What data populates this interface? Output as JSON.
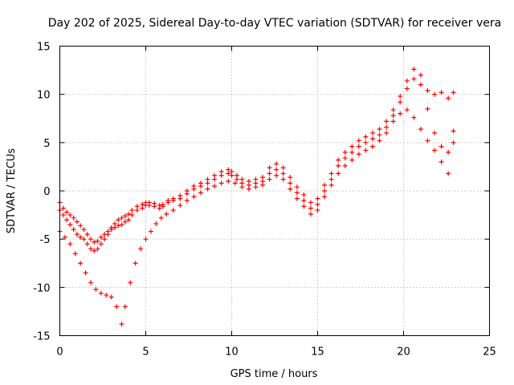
{
  "chart_data": {
    "type": "scatter",
    "title": "Day 202 of 2025, Sidereal Day-to-day VTEC variation (SDTVAR) for receiver vera",
    "xlabel": "GPS time / hours",
    "ylabel": "SDTVAR / TECUs",
    "xlim": [
      0,
      25
    ],
    "ylim": [
      -15,
      15
    ],
    "x_ticks": [
      0,
      5,
      10,
      15,
      20,
      25
    ],
    "y_ticks": [
      -15,
      -10,
      -5,
      0,
      5,
      10,
      15
    ],
    "x_tick_labels": [
      "0",
      "5",
      "10",
      "15",
      "20",
      "25"
    ],
    "y_tick_labels": [
      "-15",
      "-10",
      "-5",
      "0",
      "5",
      "10",
      "15"
    ],
    "grid": true,
    "marker": "plus",
    "color": "#ff0000",
    "series": [
      {
        "x": [
          0.0,
          0.2,
          0.4,
          0.6,
          0.8,
          1.0,
          1.2,
          1.4,
          1.6,
          1.8,
          2.0,
          2.2,
          2.4,
          2.6,
          2.8,
          3.0,
          3.2,
          3.4,
          3.6,
          3.8,
          4.0,
          4.2,
          4.5,
          4.8,
          5.0,
          5.2,
          5.5,
          5.8,
          6.0,
          6.3,
          6.6,
          7.0,
          7.4,
          7.8,
          8.2,
          8.6,
          9.0,
          9.4,
          9.8,
          10.0,
          10.3,
          10.6,
          11.0,
          11.4,
          11.8,
          12.2,
          12.6,
          13.0,
          13.4,
          13.8,
          14.2,
          14.6,
          15.0,
          15.4,
          15.8,
          16.2,
          16.6,
          17.0,
          17.4,
          17.8,
          18.2,
          18.6,
          19.0,
          19.4,
          19.8,
          20.2,
          20.6,
          21.0,
          21.4,
          21.8,
          22.2,
          22.6,
          22.9
        ],
        "y": [
          -2.0,
          -2.5,
          -3.0,
          -3.5,
          -4.0,
          -4.5,
          -4.8,
          -5.0,
          -5.5,
          -6.0,
          -6.2,
          -6.0,
          -5.5,
          -5.0,
          -4.5,
          -4.0,
          -3.8,
          -3.6,
          -3.5,
          -3.2,
          -3.0,
          -2.5,
          -2.0,
          -1.8,
          -1.5,
          -1.5,
          -1.6,
          -1.8,
          -1.6,
          -1.2,
          -1.0,
          -0.8,
          -0.3,
          0.2,
          0.5,
          0.8,
          1.2,
          1.6,
          1.8,
          1.6,
          1.2,
          0.8,
          0.6,
          0.8,
          1.0,
          1.8,
          2.2,
          1.8,
          0.8,
          -0.2,
          -1.0,
          -1.8,
          -1.4,
          0.0,
          1.2,
          2.6,
          3.4,
          4.0,
          4.6,
          5.0,
          5.4,
          5.8,
          6.6,
          7.8,
          9.2,
          10.6,
          11.6,
          11.0,
          8.5,
          6.0,
          4.6,
          4.0,
          5.0
        ]
      },
      {
        "x": [
          0.0,
          0.2,
          0.4,
          0.6,
          0.8,
          1.0,
          1.2,
          1.4,
          1.6,
          1.8,
          2.0,
          2.2,
          2.4,
          2.6,
          2.8,
          3.0,
          3.2,
          3.4,
          3.6,
          3.8,
          4.0,
          4.2,
          4.5,
          4.8,
          5.0,
          5.2,
          5.5,
          5.8,
          6.0,
          6.3,
          6.6,
          7.0,
          7.4,
          7.8,
          8.2,
          8.6,
          9.0,
          9.4,
          9.8,
          10.0,
          10.3,
          10.6,
          11.0,
          11.4,
          11.8,
          12.2,
          12.6,
          13.0,
          13.4,
          13.8,
          14.2,
          14.6,
          15.0,
          15.4,
          15.8,
          16.2,
          16.6,
          17.0,
          17.4,
          17.8,
          18.2,
          18.6,
          19.0,
          19.4,
          19.8,
          20.2,
          20.6,
          21.0,
          21.4,
          21.8,
          22.2,
          22.6,
          22.9
        ],
        "y": [
          -1.2,
          -1.8,
          -2.2,
          -2.5,
          -2.8,
          -3.2,
          -3.6,
          -4.0,
          -4.5,
          -5.0,
          -5.3,
          -5.2,
          -4.8,
          -4.5,
          -4.2,
          -3.8,
          -3.4,
          -3.0,
          -2.8,
          -2.6,
          -2.4,
          -2.0,
          -1.6,
          -1.4,
          -1.2,
          -1.2,
          -1.3,
          -1.5,
          -1.4,
          -1.0,
          -0.8,
          -0.5,
          0.0,
          0.5,
          0.8,
          1.2,
          1.6,
          2.0,
          2.2,
          2.0,
          1.6,
          1.2,
          1.0,
          1.2,
          1.4,
          2.4,
          2.8,
          2.4,
          1.4,
          0.4,
          -0.4,
          -1.2,
          -0.8,
          0.6,
          1.8,
          3.2,
          4.0,
          4.6,
          5.2,
          5.6,
          6.0,
          6.4,
          7.2,
          8.4,
          9.8,
          11.4,
          12.6,
          12.0,
          10.4,
          10.0,
          10.2,
          9.6,
          10.2
        ]
      },
      {
        "x": [
          0.0,
          0.3,
          0.6,
          0.9,
          1.2,
          1.5,
          1.8,
          2.1,
          2.4,
          2.7,
          3.0,
          3.3,
          3.6,
          3.8,
          4.1,
          4.4,
          4.7,
          5.0,
          5.3,
          5.6,
          5.9,
          6.2,
          6.6,
          7.0,
          7.4,
          7.8,
          8.2,
          8.6,
          9.0,
          9.4,
          9.8,
          10.2,
          10.6,
          11.0,
          11.4,
          11.8,
          12.2,
          12.6,
          13.0,
          13.4,
          13.8,
          14.2,
          14.6,
          15.0,
          15.4,
          15.8,
          16.2,
          16.6,
          17.0,
          17.4,
          17.8,
          18.2,
          18.6,
          19.0,
          19.4,
          19.8,
          20.2,
          20.6,
          21.0,
          21.4,
          21.8,
          22.2,
          22.6,
          22.9
        ],
        "y": [
          -4.2,
          -4.8,
          -5.5,
          -6.5,
          -7.5,
          -8.5,
          -9.5,
          -10.2,
          -10.6,
          -10.8,
          -11.0,
          -12.0,
          -13.8,
          -12.0,
          -9.5,
          -7.5,
          -6.0,
          -5.0,
          -4.2,
          -3.4,
          -2.8,
          -2.4,
          -2.0,
          -1.5,
          -1.0,
          -0.6,
          -0.2,
          0.2,
          0.5,
          0.8,
          1.0,
          0.8,
          0.4,
          0.2,
          0.4,
          0.6,
          1.2,
          1.6,
          1.2,
          0.2,
          -0.8,
          -1.6,
          -2.4,
          -2.0,
          -0.6,
          0.6,
          1.8,
          2.6,
          3.2,
          3.8,
          4.2,
          4.6,
          5.2,
          6.0,
          7.2,
          8.0,
          8.4,
          7.6,
          6.4,
          5.2,
          4.2,
          3.0,
          1.8,
          6.2
        ]
      }
    ]
  }
}
